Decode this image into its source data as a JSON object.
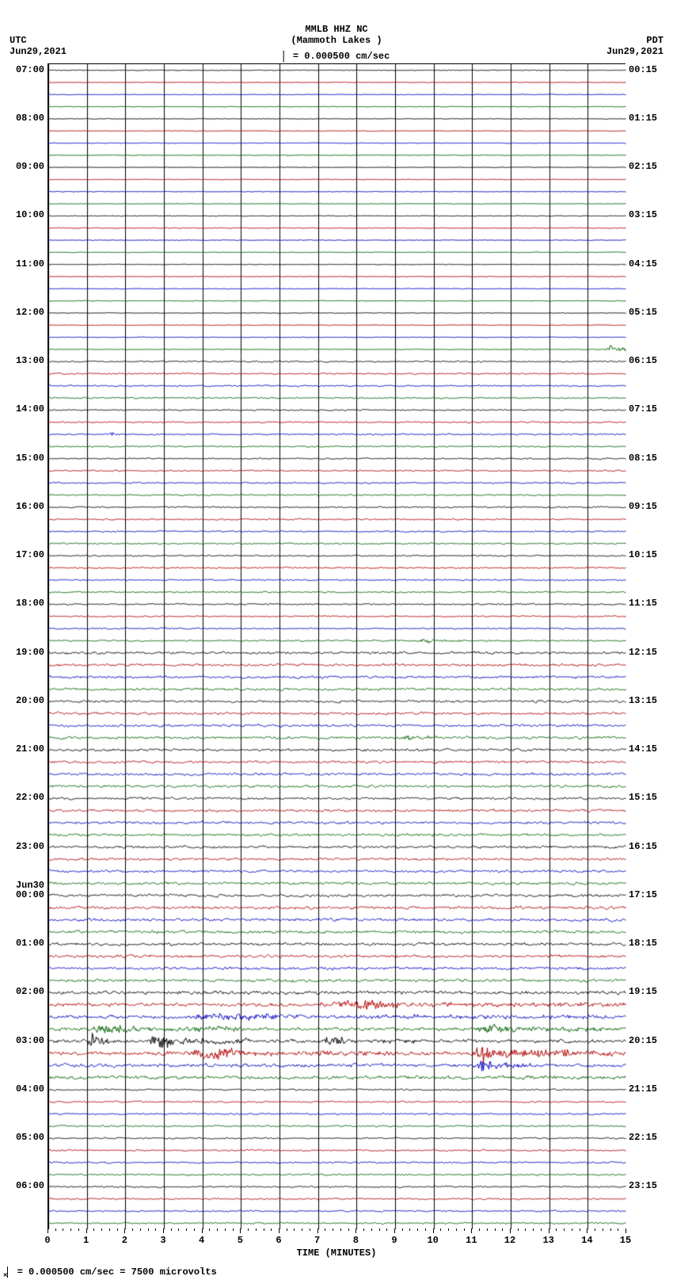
{
  "header": {
    "station": "MMLB HHZ NC",
    "location": "(Mammoth Lakes )",
    "scale_text": " = 0.000500 cm/sec",
    "left_tz": "UTC",
    "right_tz": "PDT",
    "left_date": "Jun29,2021",
    "right_date": "Jun29,2021"
  },
  "axes": {
    "x_title": "TIME (MINUTES)",
    "x_min": 0,
    "x_max": 15,
    "x_major_ticks": [
      0,
      1,
      2,
      3,
      4,
      5,
      6,
      7,
      8,
      9,
      10,
      11,
      12,
      13,
      14,
      15
    ],
    "minor_per_major": 4
  },
  "footnote": {
    "lead": "×",
    "text": " = 0.000500 cm/sec =    7500 microvolts"
  },
  "plot": {
    "trace_colors": [
      "#000000",
      "#b00000",
      "#0000c0",
      "#006000"
    ],
    "grid_color": "#000000",
    "background": "#ffffff",
    "line_width": 1,
    "n_traces": 96,
    "base_amp": 0.6,
    "noise_hf_amp": 0.5,
    "left_utc": [
      {
        "idx": 0,
        "label": "07:00"
      },
      {
        "idx": 4,
        "label": "08:00"
      },
      {
        "idx": 8,
        "label": "09:00"
      },
      {
        "idx": 12,
        "label": "10:00"
      },
      {
        "idx": 16,
        "label": "11:00"
      },
      {
        "idx": 20,
        "label": "12:00"
      },
      {
        "idx": 24,
        "label": "13:00"
      },
      {
        "idx": 28,
        "label": "14:00"
      },
      {
        "idx": 32,
        "label": "15:00"
      },
      {
        "idx": 36,
        "label": "16:00"
      },
      {
        "idx": 40,
        "label": "17:00"
      },
      {
        "idx": 44,
        "label": "18:00"
      },
      {
        "idx": 48,
        "label": "19:00"
      },
      {
        "idx": 52,
        "label": "20:00"
      },
      {
        "idx": 56,
        "label": "21:00"
      },
      {
        "idx": 60,
        "label": "22:00"
      },
      {
        "idx": 64,
        "label": "23:00"
      },
      {
        "idx": 68,
        "label": "00:00",
        "prefix": "Jun30"
      },
      {
        "idx": 72,
        "label": "01:00"
      },
      {
        "idx": 76,
        "label": "02:00"
      },
      {
        "idx": 80,
        "label": "03:00"
      },
      {
        "idx": 84,
        "label": "04:00"
      },
      {
        "idx": 88,
        "label": "05:00"
      },
      {
        "idx": 92,
        "label": "06:00"
      }
    ],
    "right_pdt": [
      {
        "idx": 0,
        "label": "00:15"
      },
      {
        "idx": 4,
        "label": "01:15"
      },
      {
        "idx": 8,
        "label": "02:15"
      },
      {
        "idx": 12,
        "label": "03:15"
      },
      {
        "idx": 16,
        "label": "04:15"
      },
      {
        "idx": 20,
        "label": "05:15"
      },
      {
        "idx": 24,
        "label": "06:15"
      },
      {
        "idx": 28,
        "label": "07:15"
      },
      {
        "idx": 32,
        "label": "08:15"
      },
      {
        "idx": 36,
        "label": "09:15"
      },
      {
        "idx": 40,
        "label": "10:15"
      },
      {
        "idx": 44,
        "label": "11:15"
      },
      {
        "idx": 48,
        "label": "12:15"
      },
      {
        "idx": 52,
        "label": "13:15"
      },
      {
        "idx": 56,
        "label": "14:15"
      },
      {
        "idx": 60,
        "label": "15:15"
      },
      {
        "idx": 64,
        "label": "16:15"
      },
      {
        "idx": 68,
        "label": "17:15"
      },
      {
        "idx": 72,
        "label": "18:15"
      },
      {
        "idx": 76,
        "label": "19:15"
      },
      {
        "idx": 80,
        "label": "20:15"
      },
      {
        "idx": 84,
        "label": "21:15"
      },
      {
        "idx": 88,
        "label": "22:15"
      },
      {
        "idx": 92,
        "label": "23:15"
      }
    ],
    "amp_ramp": [
      {
        "from": 0,
        "to": 23,
        "amp": 0.4
      },
      {
        "from": 24,
        "to": 47,
        "amp": 0.9
      },
      {
        "from": 48,
        "to": 67,
        "amp": 1.6
      },
      {
        "from": 68,
        "to": 75,
        "amp": 1.8
      },
      {
        "from": 76,
        "to": 83,
        "amp": 2.2
      },
      {
        "from": 84,
        "to": 95,
        "amp": 1.0
      }
    ],
    "events": [
      {
        "trace": 23,
        "start": 14.5,
        "end": 15.0,
        "amp": 9
      },
      {
        "trace": 30,
        "start": 1.5,
        "end": 2.3,
        "amp": 3
      },
      {
        "trace": 47,
        "start": 9.5,
        "end": 11.5,
        "amp": 3
      },
      {
        "trace": 55,
        "start": 9.2,
        "end": 10.1,
        "amp": 4
      },
      {
        "trace": 77,
        "start": 7.0,
        "end": 15.0,
        "amp": 6
      },
      {
        "trace": 78,
        "start": 3.0,
        "end": 15.0,
        "amp": 4
      },
      {
        "trace": 79,
        "start": 1.0,
        "end": 5.0,
        "amp": 7
      },
      {
        "trace": 79,
        "start": 11.0,
        "end": 15.0,
        "amp": 6
      },
      {
        "trace": 80,
        "start": 1.0,
        "end": 1.6,
        "amp": 14
      },
      {
        "trace": 80,
        "start": 2.5,
        "end": 5.2,
        "amp": 10
      },
      {
        "trace": 80,
        "start": 7.0,
        "end": 9.5,
        "amp": 6
      },
      {
        "trace": 81,
        "start": 3.5,
        "end": 9.0,
        "amp": 8
      },
      {
        "trace": 81,
        "start": 11.0,
        "end": 13.0,
        "amp": 16
      },
      {
        "trace": 81,
        "start": 13.0,
        "end": 15.0,
        "amp": 8
      },
      {
        "trace": 82,
        "start": 11.1,
        "end": 12.5,
        "amp": 10
      }
    ]
  }
}
